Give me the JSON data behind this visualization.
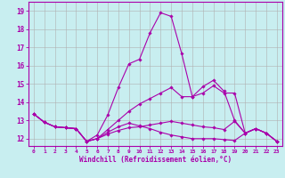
{
  "title": "",
  "xlabel": "Windchill (Refroidissement éolien,°C)",
  "ylabel": "",
  "bg_color": "#c8eef0",
  "grid_color": "#b0b0b0",
  "line_color": "#aa00aa",
  "x_ticks": [
    0,
    1,
    2,
    3,
    4,
    5,
    6,
    7,
    8,
    9,
    10,
    11,
    12,
    13,
    14,
    15,
    16,
    17,
    18,
    19,
    20,
    21,
    22,
    23
  ],
  "y_ticks": [
    12,
    13,
    14,
    15,
    16,
    17,
    18,
    19
  ],
  "ylim": [
    11.6,
    19.5
  ],
  "xlim": [
    -0.5,
    23.5
  ],
  "series": [
    [
      13.35,
      12.9,
      12.65,
      12.6,
      12.55,
      11.85,
      12.2,
      13.3,
      14.8,
      16.1,
      16.35,
      17.8,
      18.9,
      18.7,
      16.65,
      14.3,
      14.85,
      15.2,
      14.6,
      13.0,
      12.3,
      12.55,
      12.3,
      11.85
    ],
    [
      13.35,
      12.9,
      12.65,
      12.6,
      12.55,
      11.85,
      12.0,
      12.5,
      13.0,
      13.5,
      13.9,
      14.2,
      14.5,
      14.8,
      14.3,
      14.3,
      14.5,
      14.9,
      14.5,
      14.5,
      12.3,
      12.55,
      12.3,
      11.85
    ],
    [
      13.35,
      12.9,
      12.65,
      12.6,
      12.55,
      11.85,
      12.0,
      12.35,
      12.65,
      12.85,
      12.7,
      12.55,
      12.35,
      12.2,
      12.1,
      12.0,
      12.0,
      12.0,
      11.95,
      11.9,
      12.3,
      12.55,
      12.3,
      11.85
    ],
    [
      13.35,
      12.9,
      12.65,
      12.6,
      12.55,
      11.85,
      12.0,
      12.25,
      12.45,
      12.6,
      12.65,
      12.75,
      12.85,
      12.95,
      12.85,
      12.75,
      12.65,
      12.6,
      12.5,
      12.95,
      12.3,
      12.55,
      12.3,
      11.85
    ]
  ]
}
